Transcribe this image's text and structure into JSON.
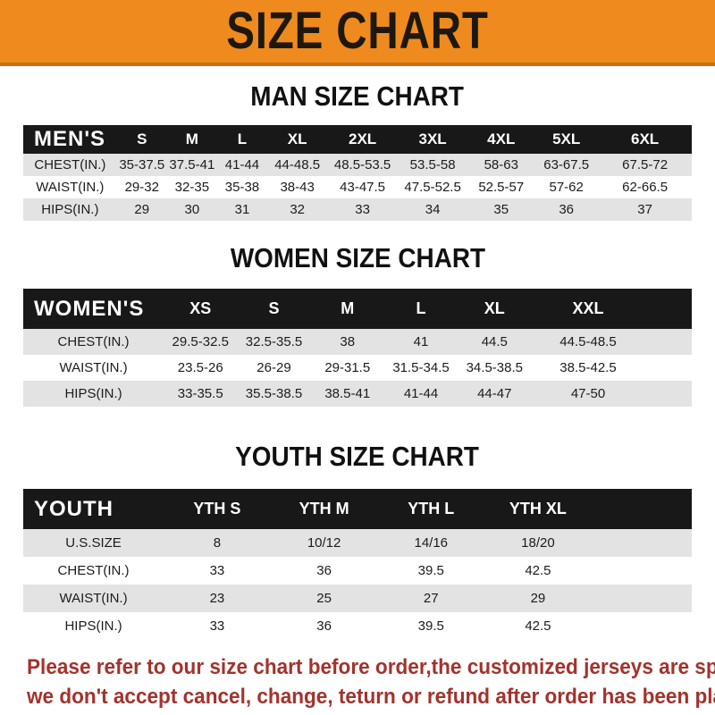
{
  "banner": {
    "title": "SIZE CHART",
    "bg_color": "#EF8A1E",
    "text_color": "#1D180F"
  },
  "sections": [
    {
      "heading": "MAN SIZE CHART",
      "table": {
        "header_label": "MEN'S",
        "columns": [
          "S",
          "M",
          "L",
          "XL",
          "2XL",
          "3XL",
          "4XL",
          "5XL",
          "6XL"
        ],
        "rows": [
          {
            "label": "CHEST(IN.)",
            "values": [
              "35-37.5",
              "37.5-41",
              "41-44",
              "44-48.5",
              "48.5-53.5",
              "53.5-58",
              "58-63",
              "63-67.5",
              "67.5-72"
            ]
          },
          {
            "label": "WAIST(IN.)",
            "values": [
              "29-32",
              "32-35",
              "35-38",
              "38-43",
              "43-47.5",
              "47.5-52.5",
              "52.5-57",
              "57-62",
              "62-66.5"
            ]
          },
          {
            "label": "HIPS(IN.)",
            "values": [
              "29",
              "30",
              "31",
              "32",
              "33",
              "34",
              "35",
              "36",
              "37"
            ]
          }
        ]
      }
    },
    {
      "heading": "WOMEN SIZE CHART",
      "table": {
        "header_label": "WOMEN'S",
        "columns": [
          "XS",
          "S",
          "M",
          "L",
          "XL",
          "XXL"
        ],
        "rows": [
          {
            "label": "CHEST(IN.)",
            "values": [
              "29.5-32.5",
              "32.5-35.5",
              "38",
              "41",
              "44.5",
              "44.5-48.5"
            ]
          },
          {
            "label": "WAIST(IN.)",
            "values": [
              "23.5-26",
              "26-29",
              "29-31.5",
              "31.5-34.5",
              "34.5-38.5",
              "38.5-42.5"
            ]
          },
          {
            "label": "HIPS(IN.)",
            "values": [
              "33-35.5",
              "35.5-38.5",
              "38.5-41",
              "41-44",
              "44-47",
              "47-50"
            ]
          }
        ]
      }
    },
    {
      "heading": "YOUTH SIZE CHART",
      "table": {
        "header_label": "YOUTH",
        "columns": [
          "YTH S",
          "YTH M",
          "YTH L",
          "YTH XL"
        ],
        "rows": [
          {
            "label": "U.S.SIZE",
            "values": [
              "8",
              "10/12",
              "14/16",
              "18/20"
            ]
          },
          {
            "label": "CHEST(IN.)",
            "values": [
              "33",
              "36",
              "39.5",
              "42.5"
            ]
          },
          {
            "label": "WAIST(IN.)",
            "values": [
              "23",
              "25",
              "27",
              "29"
            ]
          },
          {
            "label": "HIPS(IN.)",
            "values": [
              "33",
              "36",
              "39.5",
              "42.5"
            ]
          }
        ]
      }
    }
  ],
  "disclaimer": {
    "line1": "Please refer to our size chart before order,the customized jerseys are special products,",
    "line2": "we don't accept cancel, change, teturn or refund after order has been placed!",
    "text_color": "#A2332D"
  }
}
